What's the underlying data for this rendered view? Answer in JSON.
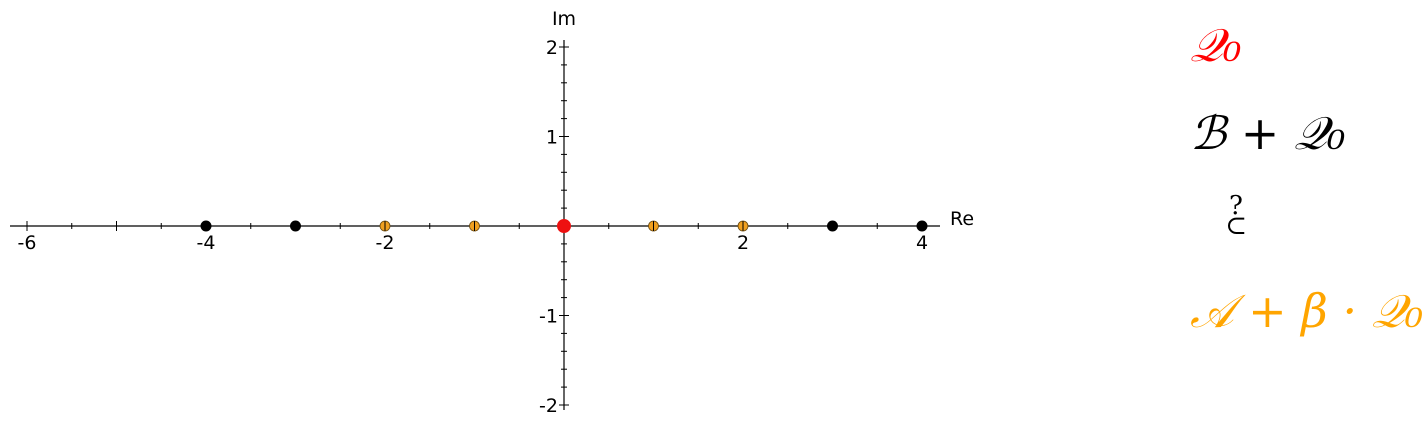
{
  "chart_data": {
    "type": "scatter",
    "xlabel": "Re",
    "ylabel": "Im",
    "xlim": [
      -6.2,
      4.2
    ],
    "ylim": [
      -2.05,
      2.05
    ],
    "x_ticks": [
      -6,
      -4,
      -2,
      2,
      4
    ],
    "y_ticks": [
      -2,
      -1,
      1,
      2
    ],
    "series": [
      {
        "name": "Q0",
        "color": "#ee1111",
        "points": [
          [
            0,
            0
          ]
        ]
      },
      {
        "name": "B+Q0",
        "color": "#000000",
        "points": [
          [
            -4,
            0
          ],
          [
            -3,
            0
          ],
          [
            3,
            0
          ],
          [
            4,
            0
          ]
        ]
      },
      {
        "name": "A+beta*Q0",
        "color": "#f0a020",
        "points": [
          [
            -2,
            0
          ],
          [
            -1,
            0
          ],
          [
            1,
            0
          ],
          [
            2,
            0
          ]
        ]
      }
    ]
  },
  "legend": {
    "items": [
      {
        "text": "𝒬₀",
        "color": "#ff0000"
      },
      {
        "text": "ℬ + 𝒬₀",
        "color": "#000000"
      },
      {
        "text_top": "?",
        "text_bottom": "⊂",
        "color": "#000000"
      },
      {
        "text": "𝒜 + β · 𝒬₀",
        "color": "#ffa500"
      }
    ]
  }
}
